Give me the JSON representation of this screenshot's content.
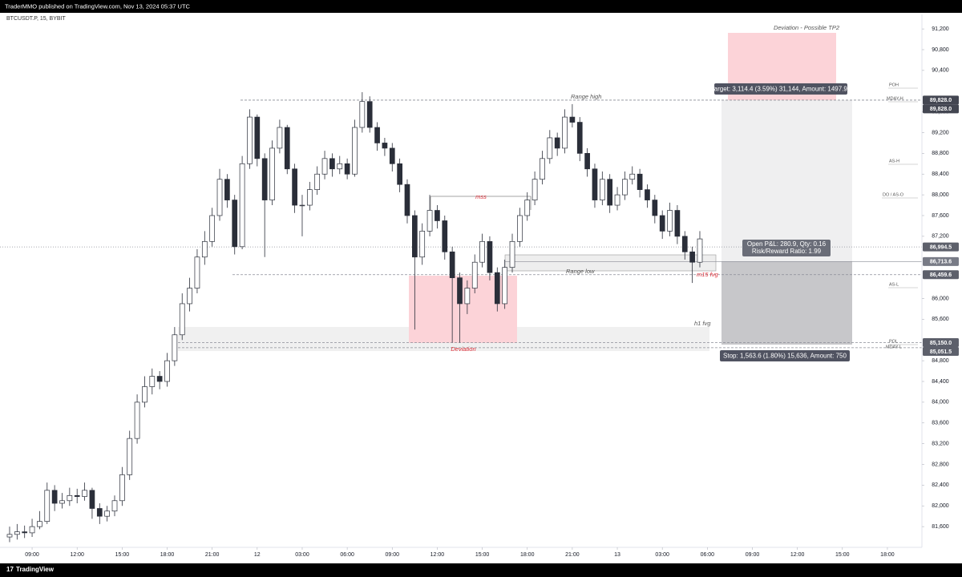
{
  "header": {
    "publisher": "TraderMMO published on TradingView.com, Nov 13, 2024 05:37 UTC",
    "symbol": "BTCUSDT.P, 15, BYBIT"
  },
  "footer": "TradingView",
  "chart_data": {
    "type": "candlestick",
    "x": [
      -1.5,
      -1,
      -0.5,
      0,
      0.5,
      1,
      1.5,
      2,
      2.5,
      3,
      3.5,
      4,
      4.5,
      5,
      5.5,
      6,
      6.5,
      7,
      7.5,
      8,
      8.5,
      9,
      9.5,
      10,
      10.5,
      11,
      11.5,
      12,
      12.5,
      13,
      13.5,
      14,
      14.5,
      15,
      15.5,
      16,
      16.5,
      17,
      17.5,
      18,
      18.5,
      19,
      19.5,
      20,
      20.5,
      21,
      21.5,
      22,
      22.5,
      23,
      23.5,
      24,
      24.5,
      25,
      25.5,
      26,
      26.5,
      27,
      27.5,
      28,
      28.5,
      29,
      29.5,
      30,
      30.5,
      31,
      31.5,
      32,
      32.5,
      33,
      33.5,
      34,
      34.5,
      35,
      35.5,
      36,
      36.5,
      37,
      37.5,
      38,
      38.5,
      39,
      39.5,
      40,
      40.5,
      41,
      41.5,
      42,
      42.5,
      43,
      43.5,
      44,
      44.5
    ],
    "open": [
      81400,
      81450,
      81500,
      81480,
      81600,
      81700,
      82300,
      82050,
      82100,
      82200,
      82180,
      82300,
      81950,
      81800,
      81900,
      82100,
      82600,
      83300,
      84000,
      84300,
      84500,
      84400,
      84800,
      85300,
      85900,
      86200,
      86800,
      87100,
      87600,
      88300,
      87900,
      87000,
      88600,
      89500,
      88700,
      87900,
      88900,
      89300,
      88500,
      87800,
      87800,
      88100,
      88400,
      88700,
      88500,
      88600,
      88400,
      89300,
      89800,
      89300,
      89000,
      88900,
      88600,
      88200,
      87600,
      86800,
      87300,
      87700,
      87500,
      86900,
      86400,
      85900,
      86200,
      86700,
      87100,
      86500,
      85900,
      86600,
      87100,
      87600,
      87900,
      88300,
      88700,
      89100,
      88900,
      89500,
      89400,
      88800,
      88500,
      87900,
      88300,
      87800,
      88000,
      88300,
      88400,
      88100,
      87900,
      87600,
      87300,
      87700,
      87200,
      86900,
      86700
    ],
    "high": [
      81600,
      81650,
      81620,
      81750,
      81900,
      82450,
      82400,
      82250,
      82350,
      82330,
      82450,
      82350,
      82050,
      82000,
      82200,
      82750,
      83450,
      84150,
      84500,
      84650,
      84600,
      84950,
      85450,
      86100,
      86400,
      86950,
      87300,
      87750,
      88500,
      88400,
      88000,
      88750,
      89650,
      89550,
      88800,
      89050,
      89450,
      89350,
      88600,
      88000,
      88250,
      88550,
      88850,
      88800,
      88750,
      88700,
      89450,
      89980,
      89900,
      89400,
      89100,
      89000,
      88700,
      88300,
      87700,
      87450,
      88000,
      87800,
      87600,
      87000,
      86500,
      86350,
      86850,
      87250,
      87200,
      86600,
      86750,
      87250,
      87750,
      88050,
      88450,
      88850,
      89250,
      89200,
      89650,
      89750,
      89500,
      88900,
      88600,
      88450,
      88400,
      88150,
      88450,
      88550,
      88500,
      88200,
      88000,
      87700,
      87850,
      87800,
      87300,
      87000,
      87300
    ],
    "low": [
      81300,
      81350,
      81380,
      81400,
      81550,
      81650,
      81900,
      81950,
      82000,
      82050,
      82100,
      81750,
      81650,
      81700,
      81800,
      82000,
      82500,
      83200,
      83900,
      84150,
      84250,
      84300,
      84700,
      85200,
      85750,
      86100,
      86650,
      87000,
      87500,
      87750,
      86850,
      86950,
      88500,
      88550,
      86800,
      87800,
      88800,
      88400,
      87650,
      87200,
      87700,
      88000,
      88300,
      88350,
      88400,
      88300,
      88350,
      89200,
      89200,
      88850,
      88750,
      88450,
      88050,
      87450,
      85400,
      86650,
      87200,
      87350,
      86750,
      85150,
      85150,
      85700,
      86100,
      86600,
      86350,
      85750,
      85800,
      86500,
      87000,
      87500,
      87800,
      88200,
      88600,
      88750,
      88800,
      89300,
      88650,
      88350,
      87750,
      87800,
      87650,
      87700,
      87900,
      88200,
      87950,
      87750,
      87450,
      87150,
      87200,
      87050,
      86750,
      86300,
      86600
    ],
    "close": [
      81450,
      81500,
      81480,
      81600,
      81700,
      82300,
      82050,
      82100,
      82200,
      82180,
      82300,
      81950,
      81800,
      81900,
      82100,
      82600,
      83300,
      84000,
      84300,
      84500,
      84400,
      84800,
      85300,
      85900,
      86200,
      86800,
      87100,
      87600,
      88300,
      87900,
      87000,
      88600,
      89500,
      88700,
      87900,
      88900,
      89300,
      88500,
      87800,
      87800,
      88100,
      88400,
      88700,
      88500,
      88600,
      88400,
      89300,
      89800,
      89300,
      89000,
      88900,
      88600,
      88200,
      87600,
      86800,
      87300,
      87700,
      87500,
      86900,
      86400,
      85900,
      86200,
      86700,
      87100,
      86500,
      85900,
      86600,
      87100,
      87600,
      87900,
      88300,
      88700,
      89100,
      88900,
      89500,
      89400,
      88800,
      88500,
      87900,
      88300,
      87800,
      88000,
      88300,
      88400,
      88100,
      87900,
      87600,
      87300,
      87700,
      87200,
      86900,
      86700,
      87150
    ],
    "up_color": "#ffffff",
    "down_color": "#2a2e39",
    "edge_color": "#2a2e39",
    "grid": false,
    "xlim": [
      -2.14,
      59.3
    ],
    "xticks": [
      {
        "value": 0,
        "label": "09:00"
      },
      {
        "value": 3,
        "label": "12:00"
      },
      {
        "value": 6,
        "label": "15:00"
      },
      {
        "value": 9,
        "label": "18:00"
      },
      {
        "value": 12,
        "label": "21:00"
      },
      {
        "value": 15,
        "label": "12"
      },
      {
        "value": 18,
        "label": "03:00"
      },
      {
        "value": 21,
        "label": "06:00"
      },
      {
        "value": 24,
        "label": "09:00"
      },
      {
        "value": 27,
        "label": "12:00"
      },
      {
        "value": 30,
        "label": "15:00"
      },
      {
        "value": 33,
        "label": "18:00"
      },
      {
        "value": 36,
        "label": "21:00"
      },
      {
        "value": 39,
        "label": "13"
      },
      {
        "value": 42,
        "label": "03:00"
      },
      {
        "value": 45,
        "label": "06:00"
      },
      {
        "value": 48,
        "label": "09:00"
      },
      {
        "value": 51,
        "label": "12:00"
      },
      {
        "value": 54,
        "label": "15:00"
      },
      {
        "value": 57,
        "label": "18:00"
      }
    ],
    "ylim": [
      81200,
      91480
    ],
    "yticks": [
      {
        "value": 81600,
        "label": "81,600"
      },
      {
        "value": 82000,
        "label": "82,000"
      },
      {
        "value": 82400,
        "label": "82,400"
      },
      {
        "value": 82800,
        "label": "82,800"
      },
      {
        "value": 83200,
        "label": "83,200"
      },
      {
        "value": 83600,
        "label": "83,600"
      },
      {
        "value": 84000,
        "label": "84,000"
      },
      {
        "value": 84400,
        "label": "84,400"
      },
      {
        "value": 84800,
        "label": "84,800"
      },
      {
        "value": 85600,
        "label": "85,600"
      },
      {
        "value": 86000,
        "label": "86,000"
      },
      {
        "value": 87200,
        "label": "87,200"
      },
      {
        "value": 87600,
        "label": "87,600"
      },
      {
        "value": 88000,
        "label": "88,000"
      },
      {
        "value": 88400,
        "label": "88,400"
      },
      {
        "value": 88800,
        "label": "88,800"
      },
      {
        "value": 89200,
        "label": "89,200"
      },
      {
        "value": 89600,
        "label": "89,600"
      },
      {
        "value": 90400,
        "label": "90,400"
      },
      {
        "value": 90800,
        "label": "90,800"
      },
      {
        "value": 91200,
        "label": "91,200"
      }
    ],
    "levels": [
      {
        "value": 89828,
        "label": "89,828.0",
        "color": "#434651"
      },
      {
        "value": 89828,
        "label": "89,828.0",
        "color": "#434651"
      },
      {
        "value": 86994.5,
        "label": "86,994.5",
        "color": "#5d606b"
      },
      {
        "value": 86713.6,
        "label": "86,713.6",
        "color": "#787b86"
      },
      {
        "value": 86459.6,
        "label": "86,459.6",
        "color": "#5d606b"
      },
      {
        "value": 85150,
        "label": "85,150.0",
        "color": "#5d606b"
      },
      {
        "value": 85051.5,
        "label": "85,051.5",
        "color": "#5d606b"
      }
    ],
    "annotations": {
      "range_high": "Range high",
      "range_low": "Range low",
      "mss": "mss",
      "deviation": "Deviation",
      "m15_fvg": "m15 fvg",
      "h1_fvg": "h1 fvg",
      "tp2": "Deviation - Possible TP2"
    },
    "position": {
      "target": "Target: 3,114.4 (3.59%) 31,144, Amount: 1497.95",
      "open_pnl": "Open P&L: 280.9, Qty: 0.16",
      "risk_reward": "Risk/Reward Ratio: 1.99",
      "stop": "Stop: 1,563.6 (1.80%) 15,636, Amount: 750"
    },
    "session_markers": [
      "POH",
      "MDAY-H",
      "AS-H",
      "DO / AS-O",
      "AS-L",
      "POL",
      "MDAY-L"
    ]
  }
}
